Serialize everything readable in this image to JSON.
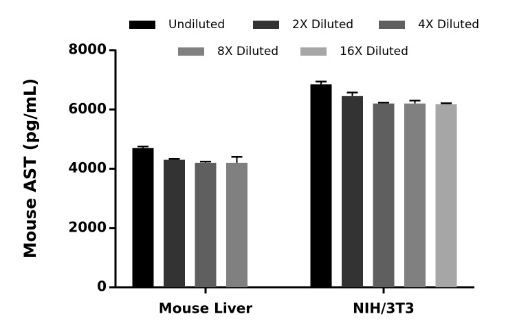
{
  "chart_data": {
    "type": "bar",
    "y_label": "Mouse AST (pg/mL)",
    "categories": [
      "Mouse Liver",
      "NIH/3T3"
    ],
    "series": [
      {
        "name": "Undiluted",
        "color": "#000000",
        "values": [
          4700,
          6850
        ],
        "errors": [
          50,
          90
        ]
      },
      {
        "name": "2X Diluted",
        "color": "#333333",
        "values": [
          4300,
          6450
        ],
        "errors": [
          30,
          120
        ]
      },
      {
        "name": "4X Diluted",
        "color": "#5f5f5f",
        "values": [
          4200,
          6200
        ],
        "errors": [
          40,
          30
        ]
      },
      {
        "name": "8X Diluted",
        "color": "#808080",
        "values": [
          4200,
          6200
        ],
        "errors": [
          200,
          100
        ]
      },
      {
        "name": "16X Diluted",
        "color": "#a6a6a6",
        "values": [
          null,
          6180
        ],
        "errors": [
          null,
          30
        ]
      }
    ],
    "ylim": [
      0,
      8000
    ],
    "yticks": [
      0,
      2000,
      4000,
      6000,
      8000
    ]
  }
}
